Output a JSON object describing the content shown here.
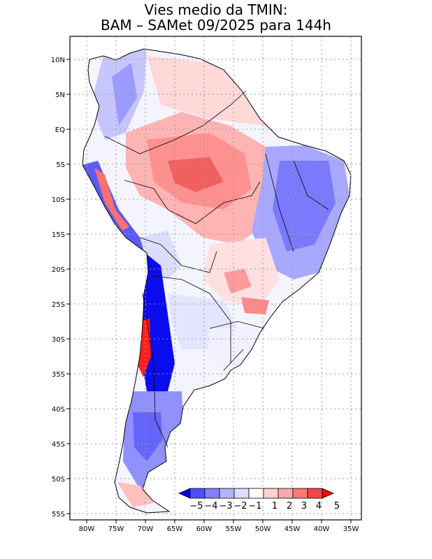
{
  "title": {
    "line1": "Vies medio da TMIN:",
    "line2": "BAM – SAMet 09/2025  para 144h"
  },
  "axes": {
    "lat_labels": [
      "10N",
      "5N",
      "EQ",
      "5S",
      "10S",
      "15S",
      "20S",
      "25S",
      "30S",
      "35S",
      "40S",
      "45S",
      "50S",
      "55S"
    ],
    "lon_labels": [
      "80W",
      "75W",
      "70W",
      "65W",
      "60W",
      "55W",
      "50W",
      "45W",
      "40W",
      "35W"
    ]
  },
  "colorbar": {
    "labels": [
      "−5",
      "−4",
      "−3",
      "−2",
      "−1",
      "1",
      "2",
      "3",
      "4",
      "5"
    ],
    "colors": [
      "#0000f0",
      "#4f4fff",
      "#8282ff",
      "#b4b4ff",
      "#dcdcff",
      "#ffffff",
      "#ffd2d2",
      "#ffaaaa",
      "#ff7878",
      "#f04646",
      "#f00000"
    ]
  },
  "palette": {
    "frame": "#000000",
    "grid": "#9a9a9a",
    "ocean": "#ffffff"
  }
}
